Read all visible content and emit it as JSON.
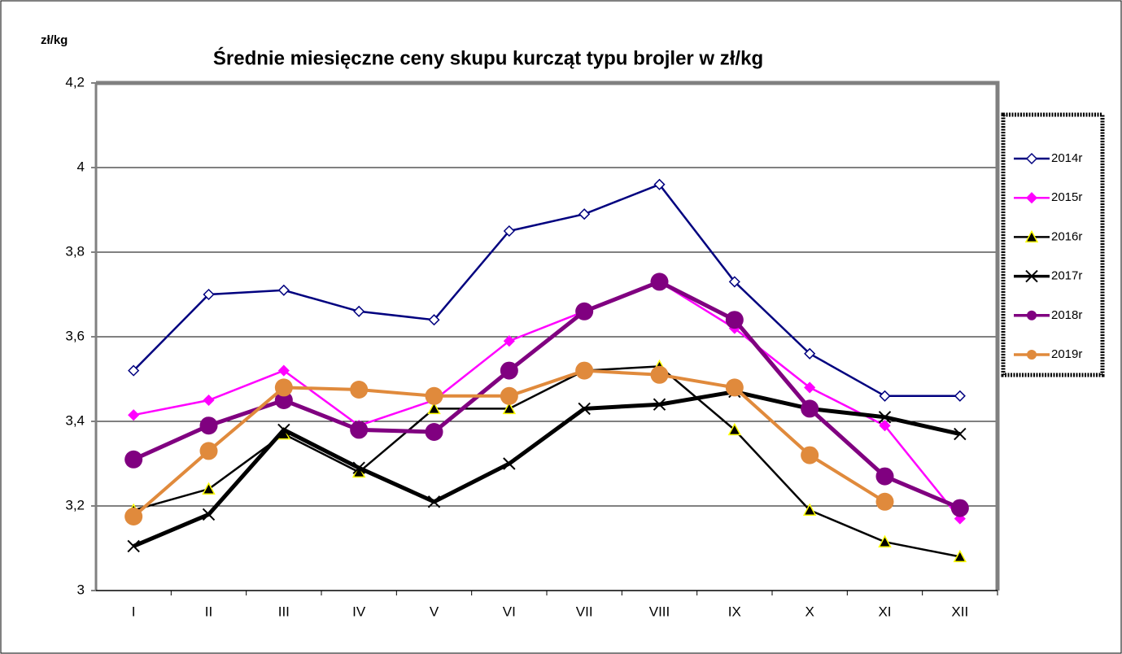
{
  "chart_data": {
    "type": "line",
    "title": "Średnie miesięczne ceny skupu kurcząt typu brojler w zł/kg",
    "y_label": "zł/kg",
    "categories": [
      "I",
      "II",
      "III",
      "IV",
      "V",
      "VI",
      "VII",
      "VIII",
      "IX",
      "X",
      "XI",
      "XII"
    ],
    "series": [
      {
        "name": "2014r",
        "color": "#00007f",
        "marker": "diamond-open",
        "width": 2.5,
        "values": [
          3.52,
          3.7,
          3.71,
          3.66,
          3.64,
          3.85,
          3.89,
          3.96,
          3.73,
          3.56,
          3.46,
          3.46
        ]
      },
      {
        "name": "2015r",
        "color": "#ff00ff",
        "marker": "diamond",
        "width": 2.5,
        "values": [
          3.415,
          3.45,
          3.52,
          3.39,
          3.45,
          3.59,
          3.66,
          3.73,
          3.62,
          3.48,
          3.39,
          3.17
        ]
      },
      {
        "name": "2016r",
        "color": "#000000",
        "marker": "triangle",
        "width": 2.5,
        "values": [
          3.19,
          3.24,
          3.37,
          3.28,
          3.43,
          3.43,
          3.52,
          3.53,
          3.38,
          3.19,
          3.115,
          3.08
        ]
      },
      {
        "name": "2017r",
        "color": "#000000",
        "marker": "cross",
        "width": 5,
        "values": [
          3.105,
          3.18,
          3.38,
          3.29,
          3.21,
          3.3,
          3.43,
          3.44,
          3.47,
          3.43,
          3.41,
          3.37
        ]
      },
      {
        "name": "2018r",
        "color": "#800080",
        "marker": "circle",
        "width": 5,
        "values": [
          3.31,
          3.39,
          3.45,
          3.38,
          3.375,
          3.52,
          3.66,
          3.73,
          3.64,
          3.43,
          3.27,
          3.195
        ]
      },
      {
        "name": "2019r",
        "color": "#e08a3c",
        "marker": "circle",
        "width": 4,
        "values": [
          3.175,
          3.33,
          3.48,
          3.475,
          3.46,
          3.46,
          3.52,
          3.51,
          3.48,
          3.32,
          3.21,
          null
        ]
      }
    ],
    "ylim": [
      3,
      4.2
    ],
    "yticks": [
      3,
      {
        "value": 3.2,
        "label": "3,2"
      },
      {
        "value": 3.4,
        "label": "3,4"
      },
      {
        "value": 3.6,
        "label": "3,6"
      },
      {
        "value": 3.8,
        "label": "3,8"
      },
      4,
      {
        "value": 4.2,
        "label": "4,2"
      }
    ],
    "grid": true,
    "legend": "right"
  }
}
